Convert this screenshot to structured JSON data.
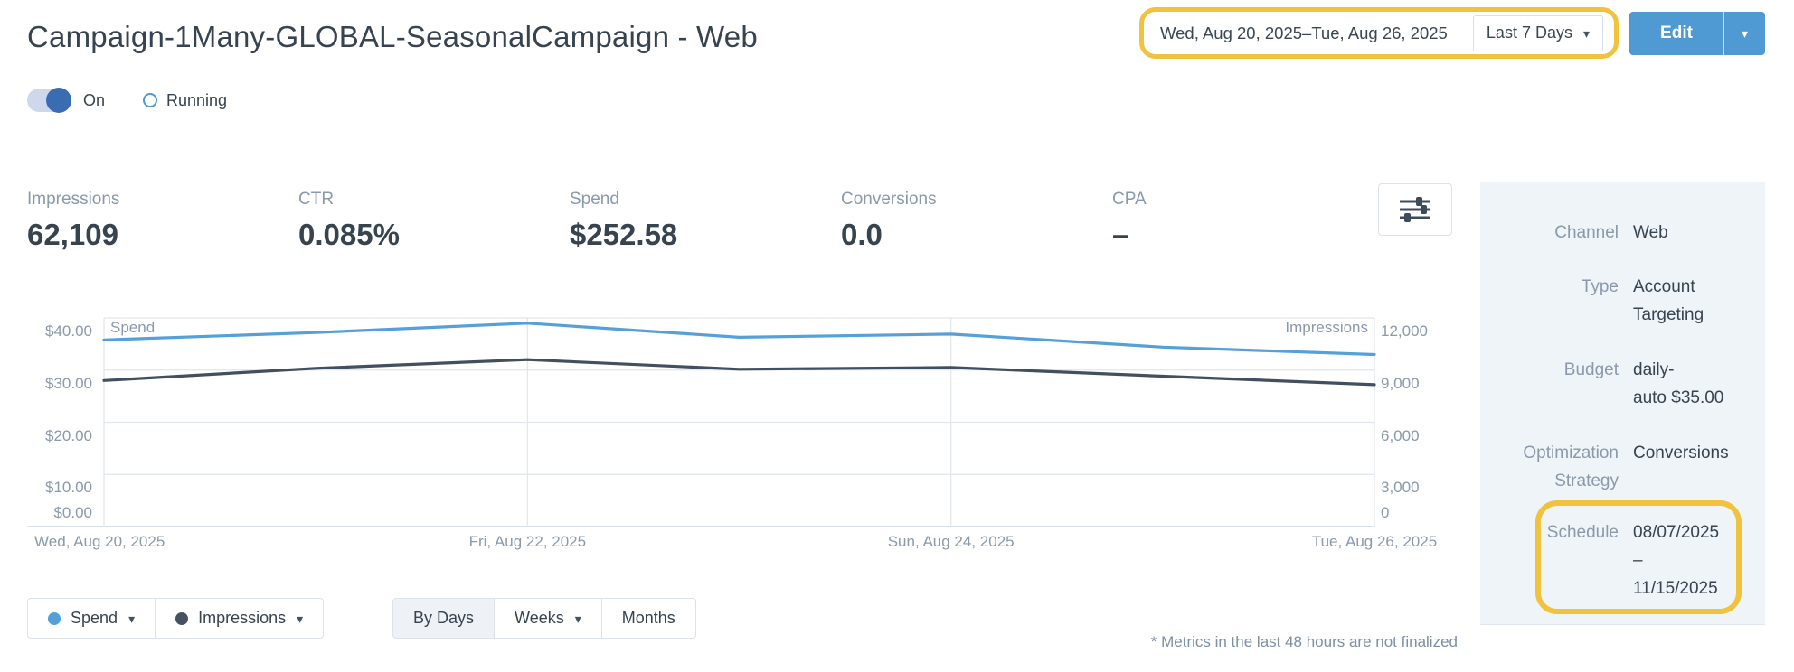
{
  "page": {
    "title": "Campaign-1Many-GLOBAL-SeasonalCampaign - Web",
    "toggle_label": "On",
    "status_label": "Running"
  },
  "header_controls": {
    "date_range": "Wed, Aug 20, 2025–Tue, Aug 26, 2025",
    "date_preset": "Last 7 Days",
    "edit_label": "Edit"
  },
  "metrics": [
    {
      "label": "Impressions",
      "value": "62,109"
    },
    {
      "label": "CTR",
      "value": "0.085%"
    },
    {
      "label": "Spend",
      "value": "$252.58"
    },
    {
      "label": "Conversions",
      "value": "0.0"
    },
    {
      "label": "CPA",
      "value": "–"
    }
  ],
  "chart_data": {
    "type": "line",
    "x": [
      "Wed, Aug 20, 2025",
      "Thu, Aug 21, 2025",
      "Fri, Aug 22, 2025",
      "Sat, Aug 23, 2025",
      "Sun, Aug 24, 2025",
      "Mon, Aug 25, 2025",
      "Tue, Aug 26, 2025"
    ],
    "x_tick_labels": [
      "Wed, Aug 20, 2025",
      "Fri, Aug 22, 2025",
      "Sun, Aug 24, 2025",
      "Tue, Aug 26, 2025"
    ],
    "series": [
      {
        "name": "Spend",
        "axis": "left",
        "color": "#55a0d9",
        "values": [
          35.8,
          37.2,
          39.0,
          36.3,
          36.9,
          34.4,
          32.98
        ]
      },
      {
        "name": "Impressions",
        "axis": "right",
        "color": "#414f5e",
        "values": [
          8400,
          9100,
          9600,
          9050,
          9150,
          8650,
          8159
        ]
      }
    ],
    "left_axis": {
      "in_plot_label": "Spend",
      "min": 0,
      "max": 40,
      "tick_labels": [
        "$40.00",
        "$30.00",
        "$20.00",
        "$10.00",
        "$0.00"
      ]
    },
    "right_axis": {
      "in_plot_label": "Impressions",
      "min": 0,
      "max": 12000,
      "tick_labels": [
        "12,000",
        "9,000",
        "6,000",
        "3,000",
        "0"
      ]
    },
    "grid": true,
    "legend_position": "inside-top-corners"
  },
  "chart_controls": {
    "series_buttons": [
      {
        "label": "Spend",
        "dot_color": "#55a0d9",
        "caret": true
      },
      {
        "label": "Impressions",
        "dot_color": "#46525f",
        "caret": true
      }
    ],
    "granularity_buttons": [
      {
        "label": "By Days",
        "active": true,
        "caret": false
      },
      {
        "label": "Weeks",
        "active": false,
        "caret": true
      },
      {
        "label": "Months",
        "active": false,
        "caret": false
      }
    ]
  },
  "footnote": "* Metrics in the last 48 hours are not finalized",
  "sidebar": {
    "rows": [
      {
        "label": "Channel",
        "value": "Web"
      },
      {
        "label": "Type",
        "value": "Account\nTargeting"
      },
      {
        "label": "Budget",
        "value": "daily-\nauto  $35.00"
      },
      {
        "label": "Optimization\nStrategy",
        "value": "Conversions"
      },
      {
        "label": "Schedule",
        "value": "08/07/2025\n–\n11/15/2025",
        "highlighted": true
      }
    ]
  },
  "colors": {
    "accent_blue": "#4f9ad2",
    "toggle_blue": "#3a6cb4",
    "highlight_gold": "#f0c23d",
    "spend_line": "#55a0d9",
    "impressions_line": "#414f5e",
    "sidebar_bg": "#eef4f8"
  }
}
